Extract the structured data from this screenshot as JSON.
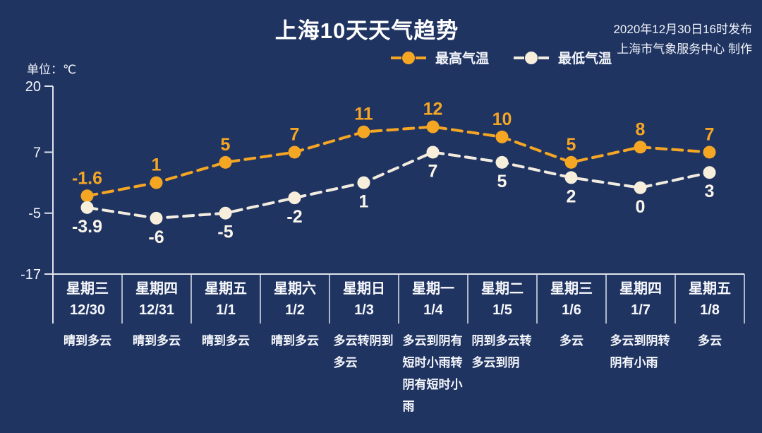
{
  "title": "上海10天天气趋势",
  "meta": {
    "line1": "2020年12月30日16时发布",
    "line2": "上海市气象服务中心 制作"
  },
  "unit_label": "单位：℃",
  "legend": {
    "high_label": "最高气温",
    "low_label": "最低气温"
  },
  "colors": {
    "background": "#203462",
    "high_series": "#f5a623",
    "low_series_line": "#f1ecdf",
    "low_series_point": "#f7efdc",
    "low_value_label": "#faf6ec",
    "axis": "#dfe3ea",
    "text": "#ffffff"
  },
  "chart_data": {
    "type": "line",
    "title": "上海10天天气趋势",
    "unit": "℃",
    "categories": [
      "12/30",
      "12/31",
      "1/1",
      "1/2",
      "1/3",
      "1/4",
      "1/5",
      "1/6",
      "1/7",
      "1/8"
    ],
    "weekdays": [
      "星期三",
      "星期四",
      "星期五",
      "星期六",
      "星期日",
      "星期一",
      "星期二",
      "星期三",
      "星期四",
      "星期五"
    ],
    "series": [
      {
        "name": "最高气温",
        "color": "#f5a623",
        "style": "dashed",
        "values": [
          -1.6,
          1,
          5,
          7,
          11,
          12,
          10,
          5,
          8,
          7
        ]
      },
      {
        "name": "最低气温",
        "color": "#f7efdc",
        "style": "dashed",
        "values": [
          -3.9,
          -6,
          -5,
          -2,
          1,
          7,
          5,
          2,
          0,
          3
        ]
      }
    ],
    "yticks": [
      20,
      7,
      -5,
      -17
    ],
    "ylim": [
      -17,
      20
    ],
    "grid": false,
    "legend_position": "top-center"
  },
  "days": [
    {
      "weekday": "星期三",
      "date": "12/30",
      "weather": "晴到多云"
    },
    {
      "weekday": "星期四",
      "date": "12/31",
      "weather": "晴到多云"
    },
    {
      "weekday": "星期五",
      "date": "1/1",
      "weather": "晴到多云"
    },
    {
      "weekday": "星期六",
      "date": "1/2",
      "weather": "晴到多云"
    },
    {
      "weekday": "星期日",
      "date": "1/3",
      "weather": "多云转阴到多云"
    },
    {
      "weekday": "星期一",
      "date": "1/4",
      "weather": "多云到阴有短时小雨转阴有短时小雨"
    },
    {
      "weekday": "星期二",
      "date": "1/5",
      "weather": "阴到多云转多云到阴"
    },
    {
      "weekday": "星期三",
      "date": "1/6",
      "weather": "多云"
    },
    {
      "weekday": "星期四",
      "date": "1/7",
      "weather": "多云到阴转阴有小雨"
    },
    {
      "weekday": "星期五",
      "date": "1/8",
      "weather": "多云"
    }
  ]
}
